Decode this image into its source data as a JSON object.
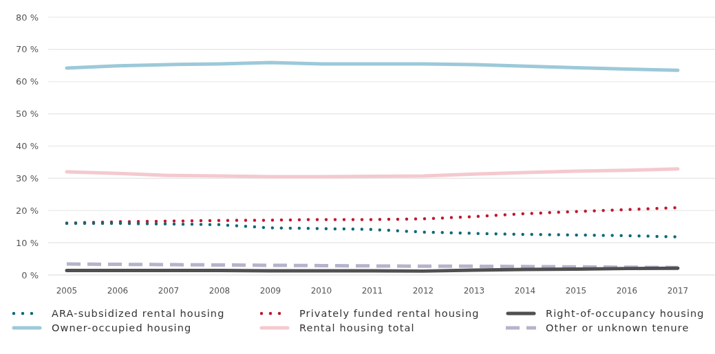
{
  "chart_data": {
    "type": "line",
    "categories": [
      "2005",
      "2006",
      "2007",
      "2008",
      "2009",
      "2010",
      "2011",
      "2012",
      "2013",
      "2014",
      "2015",
      "2016",
      "2017"
    ],
    "series": [
      {
        "name": "ARA-subsidized rental housing",
        "color": "#0e6a78",
        "line_style": "dotted",
        "values": [
          16.0,
          16.0,
          15.8,
          15.6,
          14.6,
          14.4,
          14.1,
          13.3,
          12.9,
          12.6,
          12.4,
          12.2,
          11.8
        ]
      },
      {
        "name": "Privately funded rental housing",
        "color": "#c0182e",
        "line_style": "dotted",
        "values": [
          16.1,
          16.5,
          16.7,
          16.9,
          17.0,
          17.2,
          17.2,
          17.4,
          18.1,
          19.0,
          19.7,
          20.3,
          20.9
        ]
      },
      {
        "name": "Right-of-occupancy housing",
        "color": "#505050",
        "line_style": "solid",
        "values": [
          1.4,
          1.4,
          1.4,
          1.4,
          1.3,
          1.3,
          1.3,
          1.2,
          1.5,
          1.7,
          1.8,
          2.0,
          2.1
        ]
      },
      {
        "name": "Owner-occupied housing",
        "color": "#9cc9d9",
        "line_style": "solid",
        "values": [
          64.2,
          64.9,
          65.3,
          65.5,
          65.9,
          65.5,
          65.5,
          65.5,
          65.3,
          64.8,
          64.3,
          63.9,
          63.5
        ]
      },
      {
        "name": "Rental housing total",
        "color": "#f4c9ce",
        "line_style": "solid",
        "values": [
          32.0,
          31.5,
          30.9,
          30.7,
          30.5,
          30.5,
          30.6,
          30.7,
          31.3,
          31.8,
          32.2,
          32.5,
          32.9
        ]
      },
      {
        "name": "Other or unknown tenure",
        "color": "#b4b4cc",
        "line_style": "dashed",
        "values": [
          3.4,
          3.3,
          3.2,
          3.1,
          3.0,
          2.9,
          2.8,
          2.7,
          2.7,
          2.6,
          2.5,
          2.4,
          2.3
        ]
      }
    ],
    "ylim": [
      0,
      80
    ],
    "yticks": [
      {
        "value": 0,
        "label": "0 %"
      },
      {
        "value": 10,
        "label": "10 %"
      },
      {
        "value": 20,
        "label": "20 %"
      },
      {
        "value": 30,
        "label": "30 %"
      },
      {
        "value": 40,
        "label": "40 %"
      },
      {
        "value": 50,
        "label": "50 %"
      },
      {
        "value": 60,
        "label": "60 %"
      },
      {
        "value": 70,
        "label": "70 %"
      },
      {
        "value": 80,
        "label": "80 %"
      }
    ],
    "grid": "y",
    "legend": "bottom",
    "marker": "none"
  }
}
